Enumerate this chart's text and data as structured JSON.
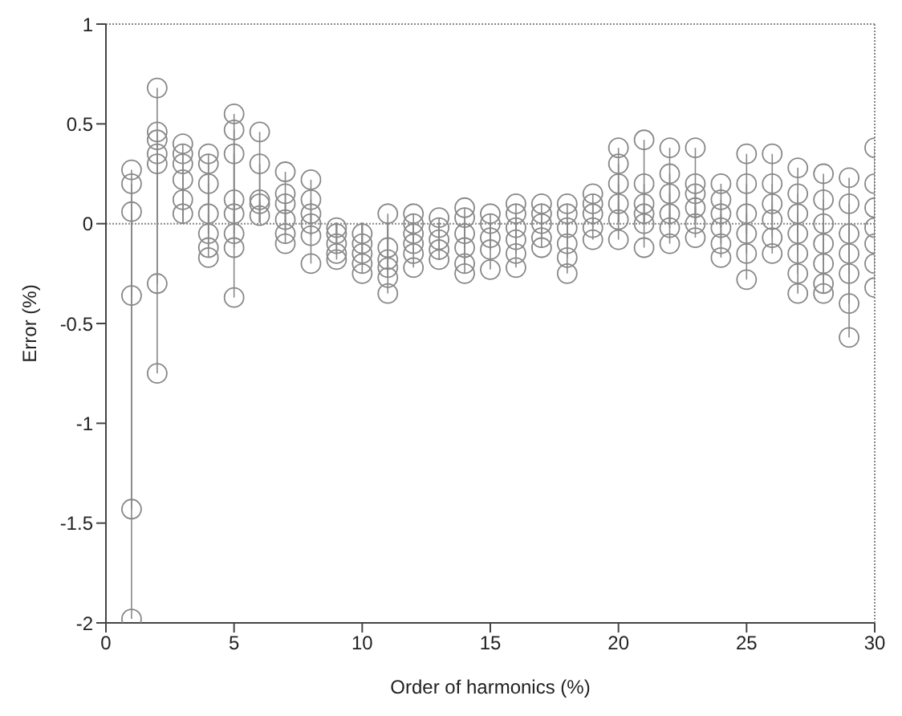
{
  "chart_data": {
    "type": "lollipop",
    "xlabel": "Order of harmonics (%)",
    "ylabel": "Error (%)",
    "x": [
      1,
      1,
      1,
      1,
      1,
      1,
      2,
      2,
      2,
      2,
      2,
      2,
      2,
      3,
      3,
      3,
      3,
      3,
      3,
      4,
      4,
      4,
      4,
      4,
      4,
      4,
      5,
      5,
      5,
      5,
      5,
      5,
      5,
      5,
      6,
      6,
      6,
      6,
      6,
      7,
      7,
      7,
      7,
      7,
      7,
      8,
      8,
      8,
      8,
      8,
      8,
      9,
      9,
      9,
      9,
      9,
      10,
      10,
      10,
      10,
      10,
      11,
      11,
      11,
      11,
      11,
      11,
      12,
      12,
      12,
      12,
      12,
      12,
      13,
      13,
      13,
      13,
      13,
      14,
      14,
      14,
      14,
      14,
      14,
      15,
      15,
      15,
      15,
      15,
      16,
      16,
      16,
      16,
      16,
      16,
      17,
      17,
      17,
      17,
      17,
      18,
      18,
      18,
      18,
      18,
      18,
      19,
      19,
      19,
      19,
      19,
      20,
      20,
      20,
      20,
      20,
      20,
      21,
      21,
      21,
      21,
      21,
      21,
      22,
      22,
      22,
      22,
      22,
      22,
      23,
      23,
      23,
      23,
      23,
      23,
      24,
      24,
      24,
      24,
      24,
      24,
      25,
      25,
      25,
      25,
      25,
      25,
      26,
      26,
      26,
      26,
      26,
      26,
      27,
      27,
      27,
      27,
      27,
      27,
      27,
      28,
      28,
      28,
      28,
      28,
      28,
      28,
      29,
      29,
      29,
      29,
      29,
      29,
      29,
      30,
      30,
      30,
      30,
      30,
      30,
      30
    ],
    "values": [
      0.27,
      0.2,
      0.06,
      -0.36,
      -1.43,
      -1.98,
      0.68,
      0.46,
      0.42,
      0.35,
      0.3,
      -0.3,
      -0.75,
      0.4,
      0.35,
      0.3,
      0.22,
      0.12,
      0.05,
      0.35,
      0.3,
      0.2,
      0.05,
      -0.05,
      -0.12,
      -0.17,
      0.55,
      0.47,
      0.35,
      0.12,
      0.05,
      -0.05,
      -0.12,
      -0.37,
      0.46,
      0.3,
      0.12,
      0.1,
      0.04,
      0.26,
      0.15,
      0.1,
      0.02,
      -0.05,
      -0.1,
      0.22,
      0.12,
      0.05,
      0.0,
      -0.06,
      -0.2,
      -0.02,
      -0.05,
      -0.1,
      -0.15,
      -0.18,
      -0.05,
      -0.1,
      -0.15,
      -0.2,
      -0.25,
      0.05,
      -0.12,
      -0.18,
      -0.22,
      -0.27,
      -0.35,
      0.05,
      0.0,
      -0.05,
      -0.1,
      -0.15,
      -0.22,
      0.03,
      -0.02,
      -0.08,
      -0.13,
      -0.18,
      0.08,
      0.03,
      -0.05,
      -0.12,
      -0.2,
      -0.25,
      0.05,
      0.0,
      -0.07,
      -0.13,
      -0.23,
      0.1,
      0.05,
      -0.02,
      -0.08,
      -0.15,
      -0.22,
      0.1,
      0.05,
      0.0,
      -0.07,
      -0.12,
      0.1,
      0.05,
      -0.02,
      -0.1,
      -0.17,
      -0.25,
      0.15,
      0.1,
      0.05,
      -0.02,
      -0.08,
      0.38,
      0.3,
      0.2,
      0.1,
      0.02,
      -0.08,
      0.42,
      0.2,
      0.1,
      0.05,
      0.0,
      -0.12,
      0.38,
      0.25,
      0.15,
      0.05,
      -0.02,
      -0.1,
      0.38,
      0.2,
      0.15,
      0.08,
      0.0,
      -0.07,
      0.2,
      0.12,
      0.05,
      -0.02,
      -0.1,
      -0.17,
      0.35,
      0.2,
      0.05,
      -0.05,
      -0.15,
      -0.28,
      0.35,
      0.2,
      0.1,
      0.02,
      -0.07,
      -0.15,
      0.28,
      0.15,
      0.05,
      -0.05,
      -0.15,
      -0.25,
      -0.35,
      0.25,
      0.12,
      0.0,
      -0.1,
      -0.2,
      -0.3,
      -0.35,
      0.23,
      0.1,
      -0.05,
      -0.15,
      -0.25,
      -0.4,
      -0.57,
      0.38,
      0.2,
      0.08,
      -0.02,
      -0.1,
      -0.2,
      -0.32
    ],
    "color": "#888888",
    "marker": "circle",
    "xlim": [
      0,
      30
    ],
    "xticks": [
      0,
      5,
      10,
      15,
      20,
      25,
      30
    ],
    "ylim": [
      -2,
      1
    ],
    "yticks": [
      -2,
      -1.5,
      -1,
      -0.5,
      0,
      0.5,
      1
    ],
    "ref_lines": [
      {
        "axis": "y",
        "value": 0,
        "color": "#888888"
      }
    ],
    "legend": false
  }
}
